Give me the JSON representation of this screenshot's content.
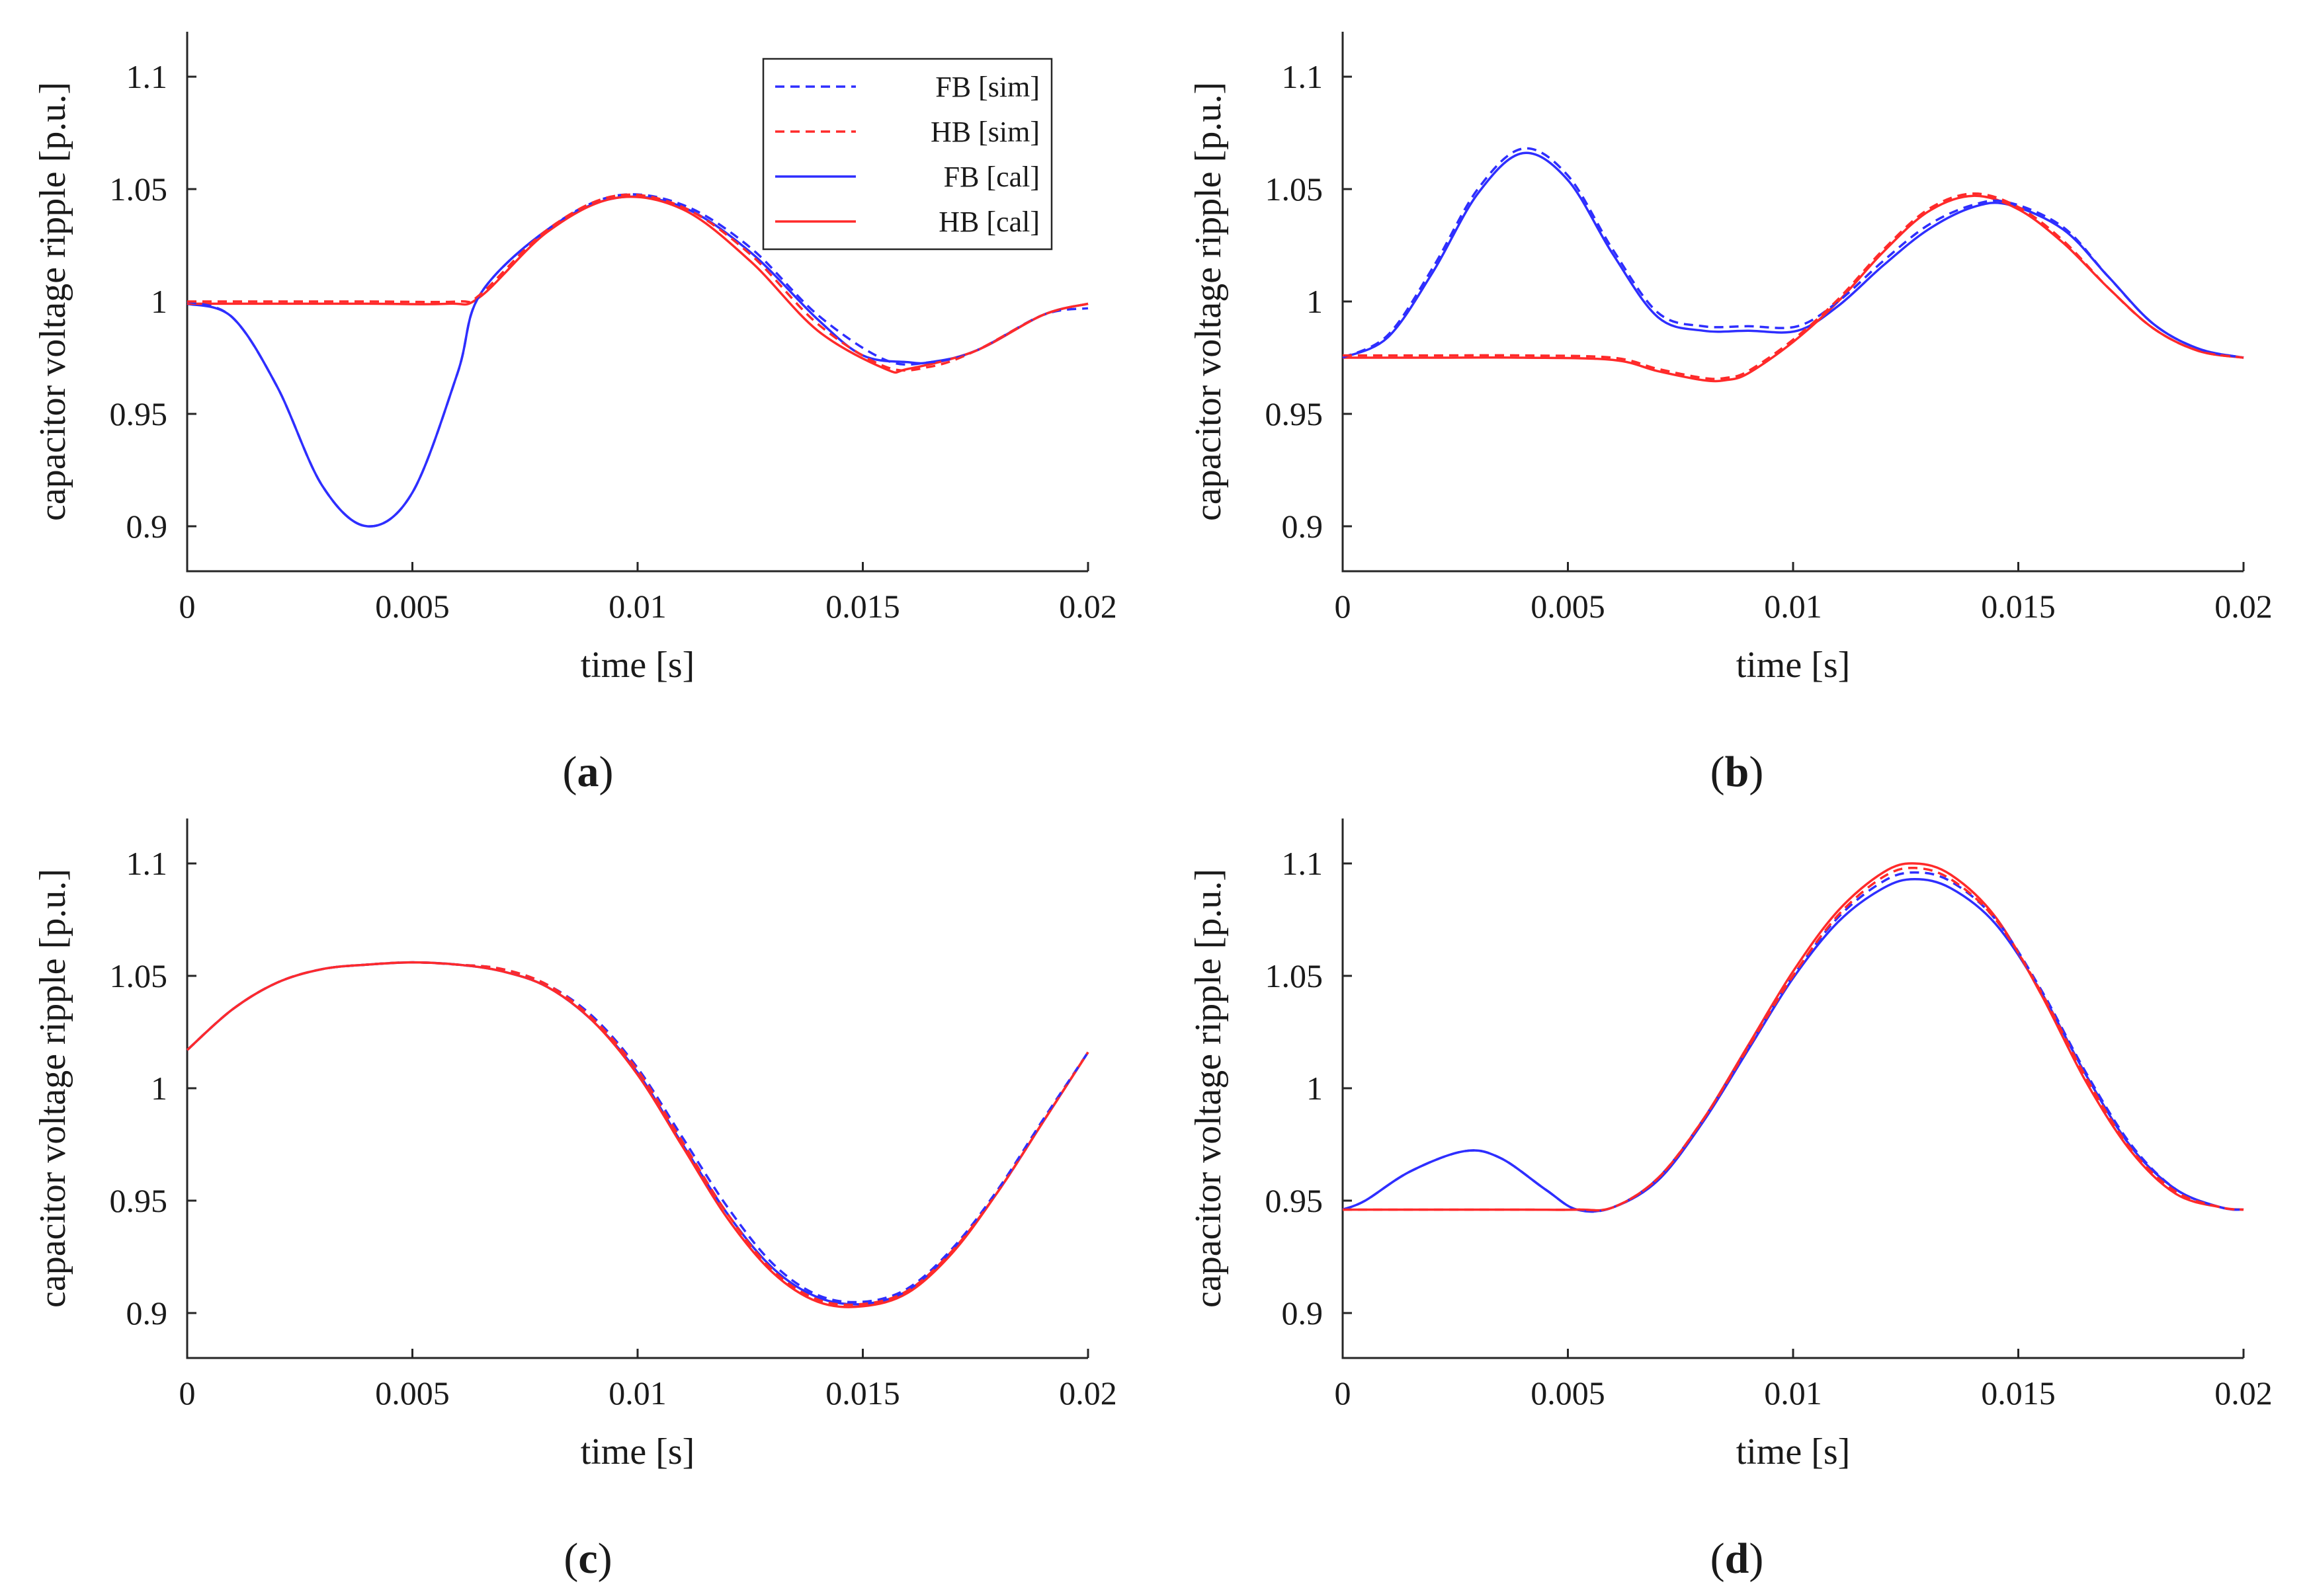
{
  "colors": {
    "fb": "#2e2eff",
    "hb": "#ff2a2a",
    "axis": "#262626"
  },
  "chart_data": [
    {
      "type": "line",
      "caption_letter": "a",
      "xlabel": "time [s]",
      "ylabel": "capacitor voltage ripple [p.u.]",
      "xlim": [
        0,
        0.02
      ],
      "ylim": [
        0.88,
        1.12
      ],
      "xticks": [
        0,
        0.005,
        0.01,
        0.015,
        0.02
      ],
      "xtick_labels": [
        "0",
        "0.005",
        "0.01",
        "0.015",
        "0.02"
      ],
      "yticks": [
        0.9,
        0.95,
        1,
        1.05,
        1.1
      ],
      "ytick_labels": [
        "0.9",
        "0.95",
        "1",
        "1.05",
        "1.1"
      ],
      "legend": {
        "position": "top-right",
        "entries": [
          "FB [sim]",
          "HB [sim]",
          "FB [cal]",
          "HB [cal]"
        ]
      },
      "series": [
        {
          "name": "FB [sim]",
          "color": "fb",
          "style": "dashed",
          "x": [
            0,
            0.001,
            0.002,
            0.003,
            0.004,
            0.005,
            0.006,
            0.0065,
            0.008,
            0.0095,
            0.011,
            0.0125,
            0.014,
            0.0155,
            0.0165,
            0.0175,
            0.019,
            0.02
          ],
          "y": [
            1.0,
            0.993,
            0.962,
            0.918,
            0.9,
            0.915,
            0.968,
            1.003,
            1.032,
            1.047,
            1.043,
            1.024,
            0.994,
            0.974,
            0.973,
            0.978,
            0.994,
            0.997
          ]
        },
        {
          "name": "HB [sim]",
          "color": "hb",
          "style": "dashed",
          "x": [
            0,
            0.002,
            0.004,
            0.006,
            0.0065,
            0.008,
            0.0095,
            0.011,
            0.0125,
            0.014,
            0.0155,
            0.0165,
            0.0175,
            0.019,
            0.02
          ],
          "y": [
            1.0,
            1.0,
            1.0,
            1.0,
            1.003,
            1.032,
            1.047,
            1.042,
            1.021,
            0.99,
            0.971,
            0.971,
            0.978,
            0.994,
            0.999
          ]
        },
        {
          "name": "FB [cal]",
          "color": "fb",
          "style": "solid",
          "x": [
            0,
            0.001,
            0.002,
            0.003,
            0.004,
            0.005,
            0.006,
            0.0065,
            0.008,
            0.0095,
            0.011,
            0.0125,
            0.014,
            0.015,
            0.016,
            0.0165,
            0.0175,
            0.019,
            0.02
          ],
          "y": [
            0.999,
            0.993,
            0.962,
            0.918,
            0.9,
            0.915,
            0.968,
            1.003,
            1.032,
            1.046,
            1.042,
            1.022,
            0.992,
            0.976,
            0.973,
            0.973,
            0.978,
            0.994,
            0.999
          ]
        },
        {
          "name": "HB [cal]",
          "color": "hb",
          "style": "solid",
          "x": [
            0,
            0.002,
            0.004,
            0.0058,
            0.0065,
            0.008,
            0.0095,
            0.011,
            0.0125,
            0.014,
            0.0155,
            0.016,
            0.0175,
            0.019,
            0.02
          ],
          "y": [
            0.999,
            0.999,
            0.999,
            0.999,
            1.002,
            1.031,
            1.046,
            1.041,
            1.018,
            0.987,
            0.97,
            0.97,
            0.978,
            0.994,
            0.999
          ]
        }
      ]
    },
    {
      "type": "line",
      "caption_letter": "b",
      "xlabel": "time [s]",
      "ylabel": "capacitor voltage ripple [p.u.]",
      "xlim": [
        0,
        0.02
      ],
      "ylim": [
        0.88,
        1.12
      ],
      "xticks": [
        0,
        0.005,
        0.01,
        0.015,
        0.02
      ],
      "xtick_labels": [
        "0",
        "0.005",
        "0.01",
        "0.015",
        "0.02"
      ],
      "yticks": [
        0.9,
        0.95,
        1,
        1.05,
        1.1
      ],
      "ytick_labels": [
        "0.9",
        "0.95",
        "1",
        "1.05",
        "1.1"
      ],
      "series": [
        {
          "name": "FB [sim]",
          "color": "fb",
          "style": "dashed",
          "x": [
            0,
            0.001,
            0.002,
            0.003,
            0.004,
            0.005,
            0.006,
            0.007,
            0.008,
            0.009,
            0.0101,
            0.011,
            0.012,
            0.013,
            0.014,
            0.0148,
            0.016,
            0.017,
            0.018,
            0.019,
            0.02
          ],
          "y": [
            0.975,
            0.985,
            1.015,
            1.05,
            1.068,
            1.056,
            1.023,
            0.995,
            0.989,
            0.989,
            0.989,
            1.0,
            1.018,
            1.034,
            1.043,
            1.044,
            1.033,
            1.011,
            0.99,
            0.979,
            0.975
          ]
        },
        {
          "name": "HB [sim]",
          "color": "hb",
          "style": "dashed",
          "x": [
            0,
            0.002,
            0.004,
            0.006,
            0.007,
            0.008,
            0.0085,
            0.009,
            0.01,
            0.011,
            0.012,
            0.013,
            0.014,
            0.015,
            0.016,
            0.017,
            0.018,
            0.019,
            0.02
          ],
          "y": [
            0.976,
            0.976,
            0.976,
            0.975,
            0.97,
            0.966,
            0.966,
            0.969,
            0.983,
            1.001,
            1.023,
            1.041,
            1.048,
            1.042,
            1.027,
            1.006,
            0.988,
            0.978,
            0.975
          ]
        },
        {
          "name": "FB [cal]",
          "color": "fb",
          "style": "solid",
          "x": [
            0,
            0.001,
            0.002,
            0.003,
            0.004,
            0.005,
            0.006,
            0.007,
            0.008,
            0.009,
            0.0101,
            0.011,
            0.012,
            0.013,
            0.014,
            0.0148,
            0.016,
            0.017,
            0.018,
            0.019,
            0.02
          ],
          "y": [
            0.975,
            0.984,
            1.013,
            1.048,
            1.066,
            1.054,
            1.021,
            0.993,
            0.987,
            0.987,
            0.987,
            0.998,
            1.016,
            1.032,
            1.042,
            1.043,
            1.032,
            1.011,
            0.99,
            0.979,
            0.975
          ]
        },
        {
          "name": "HB [cal]",
          "color": "hb",
          "style": "solid",
          "x": [
            0,
            0.002,
            0.004,
            0.006,
            0.007,
            0.008,
            0.0085,
            0.009,
            0.01,
            0.011,
            0.012,
            0.013,
            0.014,
            0.015,
            0.016,
            0.017,
            0.018,
            0.019,
            0.02
          ],
          "y": [
            0.975,
            0.975,
            0.975,
            0.974,
            0.969,
            0.965,
            0.965,
            0.968,
            0.982,
            1.0,
            1.022,
            1.04,
            1.047,
            1.041,
            1.026,
            1.006,
            0.988,
            0.978,
            0.975
          ]
        }
      ]
    },
    {
      "type": "line",
      "caption_letter": "c",
      "xlabel": "time [s]",
      "ylabel": "capacitor voltage ripple [p.u.]",
      "xlim": [
        0,
        0.02
      ],
      "ylim": [
        0.88,
        1.12
      ],
      "xticks": [
        0,
        0.005,
        0.01,
        0.015,
        0.02
      ],
      "xtick_labels": [
        "0",
        "0.005",
        "0.01",
        "0.015",
        "0.02"
      ],
      "yticks": [
        0.9,
        0.95,
        1,
        1.05,
        1.1
      ],
      "ytick_labels": [
        "0.9",
        "0.95",
        "1",
        "1.05",
        "1.1"
      ],
      "series": [
        {
          "name": "FB [sim]",
          "color": "fb",
          "style": "dashed",
          "x": [
            0,
            0.001,
            0.002,
            0.003,
            0.004,
            0.005,
            0.006,
            0.007,
            0.008,
            0.009,
            0.01,
            0.011,
            0.012,
            0.013,
            0.014,
            0.015,
            0.016,
            0.017,
            0.018,
            0.019,
            0.02
          ],
          "y": [
            1.017,
            1.035,
            1.047,
            1.053,
            1.055,
            1.056,
            1.055,
            1.053,
            1.046,
            1.032,
            1.009,
            0.978,
            0.947,
            0.922,
            0.908,
            0.905,
            0.911,
            0.929,
            0.955,
            0.986,
            1.016
          ]
        },
        {
          "name": "HB [sim]",
          "color": "hb",
          "style": "dashed",
          "x": [
            0,
            0.001,
            0.002,
            0.003,
            0.004,
            0.005,
            0.006,
            0.007,
            0.008,
            0.009,
            0.01,
            0.011,
            0.012,
            0.013,
            0.014,
            0.015,
            0.016,
            0.017,
            0.018,
            0.019,
            0.02
          ],
          "y": [
            1.017,
            1.035,
            1.047,
            1.053,
            1.055,
            1.056,
            1.055,
            1.053,
            1.046,
            1.031,
            1.008,
            0.976,
            0.944,
            0.919,
            0.906,
            0.904,
            0.91,
            0.928,
            0.954,
            0.985,
            1.016
          ]
        },
        {
          "name": "FB [cal]",
          "color": "fb",
          "style": "solid",
          "x": [
            0,
            0.001,
            0.002,
            0.003,
            0.004,
            0.005,
            0.006,
            0.007,
            0.008,
            0.009,
            0.01,
            0.011,
            0.012,
            0.013,
            0.014,
            0.015,
            0.016,
            0.017,
            0.018,
            0.019,
            0.02
          ],
          "y": [
            1.017,
            1.035,
            1.047,
            1.053,
            1.055,
            1.056,
            1.055,
            1.052,
            1.045,
            1.03,
            1.007,
            0.975,
            0.944,
            0.92,
            0.907,
            0.904,
            0.91,
            0.928,
            0.954,
            0.985,
            1.016
          ]
        },
        {
          "name": "HB [cal]",
          "color": "hb",
          "style": "solid",
          "x": [
            0,
            0.001,
            0.002,
            0.003,
            0.004,
            0.005,
            0.006,
            0.007,
            0.008,
            0.009,
            0.01,
            0.011,
            0.012,
            0.013,
            0.014,
            0.015,
            0.016,
            0.017,
            0.018,
            0.019,
            0.02
          ],
          "y": [
            1.017,
            1.035,
            1.047,
            1.053,
            1.055,
            1.056,
            1.055,
            1.052,
            1.045,
            1.03,
            1.006,
            0.974,
            0.942,
            0.918,
            0.905,
            0.903,
            0.909,
            0.927,
            0.954,
            0.985,
            1.016
          ]
        }
      ]
    },
    {
      "type": "line",
      "caption_letter": "d",
      "xlabel": "time [s]",
      "ylabel": "capacitor voltage ripple [p.u.]",
      "xlim": [
        0,
        0.02
      ],
      "ylim": [
        0.88,
        1.12
      ],
      "xticks": [
        0,
        0.005,
        0.01,
        0.015,
        0.02
      ],
      "xtick_labels": [
        "0",
        "0.005",
        "0.01",
        "0.015",
        "0.02"
      ],
      "yticks": [
        0.9,
        0.95,
        1,
        1.05,
        1.1
      ],
      "ytick_labels": [
        "0.9",
        "0.95",
        "1",
        "1.05",
        "1.1"
      ],
      "series": [
        {
          "name": "FB [sim]",
          "color": "fb",
          "style": "dashed",
          "x": [
            0,
            0.0005,
            0.0015,
            0.0027,
            0.0035,
            0.0045,
            0.0052,
            0.006,
            0.007,
            0.008,
            0.009,
            0.01,
            0.011,
            0.012,
            0.0127,
            0.0135,
            0.0145,
            0.0155,
            0.0165,
            0.0175,
            0.0185,
            0.0195,
            0.02
          ],
          "y": [
            0.946,
            0.95,
            0.963,
            0.972,
            0.969,
            0.955,
            0.946,
            0.947,
            0.96,
            0.986,
            1.018,
            1.05,
            1.076,
            1.092,
            1.096,
            1.092,
            1.075,
            1.044,
            1.007,
            0.975,
            0.955,
            0.947,
            0.946
          ]
        },
        {
          "name": "HB [sim]",
          "color": "hb",
          "style": "dashed",
          "x": [
            0,
            0.002,
            0.004,
            0.0052,
            0.006,
            0.007,
            0.008,
            0.009,
            0.01,
            0.011,
            0.012,
            0.0127,
            0.0135,
            0.0145,
            0.0155,
            0.0165,
            0.0175,
            0.0185,
            0.0195,
            0.02
          ],
          "y": [
            0.946,
            0.946,
            0.946,
            0.946,
            0.947,
            0.96,
            0.986,
            1.018,
            1.05,
            1.077,
            1.094,
            1.098,
            1.093,
            1.075,
            1.043,
            1.005,
            0.973,
            0.954,
            0.947,
            0.946
          ]
        },
        {
          "name": "FB [cal]",
          "color": "fb",
          "style": "solid",
          "x": [
            0,
            0.0005,
            0.0015,
            0.0027,
            0.0035,
            0.0045,
            0.0052,
            0.006,
            0.007,
            0.008,
            0.009,
            0.01,
            0.011,
            0.012,
            0.0127,
            0.0135,
            0.0145,
            0.0155,
            0.0165,
            0.0175,
            0.0185,
            0.0195,
            0.02
          ],
          "y": [
            0.946,
            0.95,
            0.963,
            0.972,
            0.969,
            0.955,
            0.946,
            0.947,
            0.959,
            0.985,
            1.017,
            1.049,
            1.074,
            1.089,
            1.093,
            1.089,
            1.073,
            1.043,
            1.006,
            0.974,
            0.955,
            0.947,
            0.946
          ]
        },
        {
          "name": "HB [cal]",
          "color": "hb",
          "style": "solid",
          "x": [
            0,
            0.002,
            0.004,
            0.0052,
            0.006,
            0.007,
            0.008,
            0.009,
            0.01,
            0.011,
            0.012,
            0.0127,
            0.0135,
            0.0145,
            0.0155,
            0.0165,
            0.0175,
            0.0185,
            0.0195,
            0.02
          ],
          "y": [
            0.946,
            0.946,
            0.946,
            0.946,
            0.947,
            0.96,
            0.986,
            1.019,
            1.052,
            1.079,
            1.096,
            1.1,
            1.095,
            1.076,
            1.042,
            1.003,
            0.972,
            0.953,
            0.947,
            0.946
          ]
        }
      ]
    }
  ]
}
